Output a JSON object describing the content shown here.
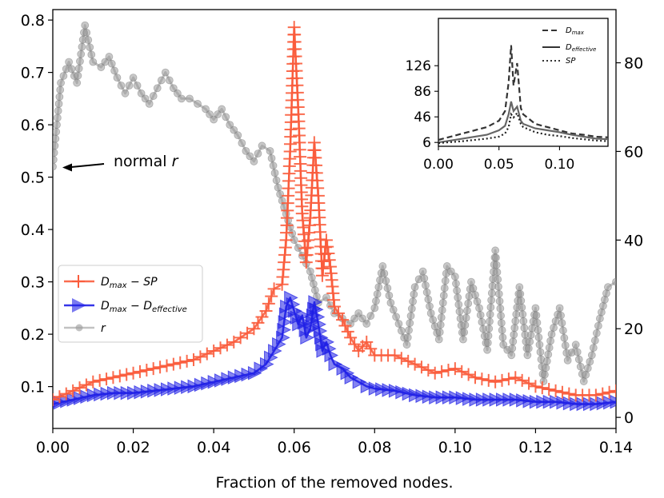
{
  "chart_data": {
    "type": "line",
    "xlabel": "Fraction of the removed nodes.",
    "xlim": [
      0,
      0.14
    ],
    "x_ticks": [
      "0.00",
      "0.02",
      "0.04",
      "0.06",
      "0.08",
      "0.10",
      "0.12",
      "0.14"
    ],
    "left_ylim": [
      0.02,
      0.82
    ],
    "left_y_ticks": [
      "0.1",
      "0.2",
      "0.3",
      "0.4",
      "0.5",
      "0.6",
      "0.7",
      "0.8"
    ],
    "right_ylim": [
      -2.5,
      92
    ],
    "right_y_ticks": [
      "0",
      "20",
      "40",
      "60",
      "80"
    ],
    "annotation": {
      "text": "normal",
      "italic_part": "r",
      "target_x": 0.0,
      "target_y": 0.52
    },
    "legend": [
      {
        "label": "D",
        "sub": "max",
        "rest": " − SP",
        "color": "#fa5c3c",
        "marker": "plus"
      },
      {
        "label": "D",
        "sub": "max",
        "rest": " − D",
        "sub2": "effective",
        "color": "#1f1fe6",
        "marker": "triangle"
      },
      {
        "label": "r",
        "color": "#9a9a9a",
        "marker": "circle"
      }
    ],
    "series": [
      {
        "name": "Dmax - SP",
        "axis": "right",
        "color": "#fa5c3c",
        "x": [
          0.0,
          0.005,
          0.01,
          0.015,
          0.02,
          0.025,
          0.03,
          0.035,
          0.04,
          0.045,
          0.05,
          0.053,
          0.055,
          0.057,
          0.058,
          0.059,
          0.06,
          0.061,
          0.062,
          0.063,
          0.064,
          0.065,
          0.066,
          0.067,
          0.068,
          0.069,
          0.07,
          0.072,
          0.074,
          0.076,
          0.078,
          0.08,
          0.085,
          0.09,
          0.095,
          0.1,
          0.105,
          0.11,
          0.115,
          0.12,
          0.125,
          0.13,
          0.135,
          0.14
        ],
        "values": [
          4,
          6,
          8,
          9,
          10,
          11,
          12,
          13,
          15,
          17,
          20,
          24,
          29,
          30,
          40,
          60,
          88,
          70,
          46,
          35,
          45,
          62,
          50,
          32,
          40,
          34,
          25,
          22,
          18,
          15,
          17,
          14,
          14,
          12,
          10,
          11,
          9,
          8,
          9,
          7,
          6,
          5,
          5,
          6
        ]
      },
      {
        "name": "Dmax - Deffective",
        "axis": "right",
        "color": "#1f1fe6",
        "x": [
          0.0,
          0.005,
          0.01,
          0.015,
          0.02,
          0.025,
          0.03,
          0.035,
          0.04,
          0.045,
          0.05,
          0.053,
          0.055,
          0.057,
          0.058,
          0.059,
          0.06,
          0.061,
          0.062,
          0.063,
          0.064,
          0.065,
          0.066,
          0.067,
          0.068,
          0.069,
          0.07,
          0.072,
          0.074,
          0.076,
          0.078,
          0.08,
          0.085,
          0.09,
          0.095,
          0.1,
          0.105,
          0.11,
          0.115,
          0.12,
          0.125,
          0.13,
          0.135,
          0.14
        ],
        "values": [
          3,
          4,
          5,
          5.5,
          5.5,
          6,
          6.5,
          7,
          8,
          9,
          10,
          12,
          15,
          18,
          25,
          27,
          24,
          21,
          23,
          18,
          20,
          26,
          21,
          15,
          17,
          14,
          12,
          11,
          9,
          8,
          7,
          6.5,
          6,
          5,
          4.5,
          4.5,
          4,
          4,
          4,
          3.5,
          3.5,
          3,
          3,
          3.5
        ]
      },
      {
        "name": "r",
        "axis": "left",
        "color": "#9a9a9a",
        "x": [
          0.0,
          0.002,
          0.004,
          0.006,
          0.008,
          0.01,
          0.012,
          0.014,
          0.016,
          0.018,
          0.02,
          0.022,
          0.024,
          0.026,
          0.028,
          0.03,
          0.032,
          0.034,
          0.036,
          0.038,
          0.04,
          0.042,
          0.044,
          0.046,
          0.048,
          0.05,
          0.052,
          0.054,
          0.056,
          0.058,
          0.06,
          0.062,
          0.064,
          0.066,
          0.068,
          0.07,
          0.072,
          0.074,
          0.076,
          0.078,
          0.08,
          0.082,
          0.084,
          0.086,
          0.088,
          0.09,
          0.092,
          0.094,
          0.096,
          0.098,
          0.1,
          0.102,
          0.104,
          0.106,
          0.108,
          0.11,
          0.112,
          0.114,
          0.116,
          0.118,
          0.12,
          0.122,
          0.124,
          0.126,
          0.128,
          0.13,
          0.132,
          0.134,
          0.136,
          0.138,
          0.14
        ],
        "values": [
          0.52,
          0.68,
          0.72,
          0.68,
          0.79,
          0.72,
          0.71,
          0.73,
          0.69,
          0.66,
          0.69,
          0.66,
          0.64,
          0.67,
          0.7,
          0.67,
          0.65,
          0.65,
          0.64,
          0.63,
          0.61,
          0.63,
          0.6,
          0.58,
          0.55,
          0.53,
          0.56,
          0.55,
          0.48,
          0.43,
          0.38,
          0.35,
          0.32,
          0.26,
          0.27,
          0.24,
          0.23,
          0.22,
          0.24,
          0.22,
          0.25,
          0.33,
          0.26,
          0.22,
          0.18,
          0.29,
          0.32,
          0.24,
          0.19,
          0.33,
          0.31,
          0.19,
          0.3,
          0.25,
          0.17,
          0.36,
          0.18,
          0.16,
          0.29,
          0.16,
          0.25,
          0.11,
          0.2,
          0.25,
          0.15,
          0.18,
          0.11,
          0.16,
          0.23,
          0.29,
          0.3
        ]
      }
    ],
    "inset": {
      "type": "line",
      "xlim": [
        0,
        0.14
      ],
      "ylim": [
        0,
        200
      ],
      "x_ticks": [
        "0.00",
        "0.05",
        "0.10"
      ],
      "y_ticks": [
        "6",
        "46",
        "86",
        "126"
      ],
      "legend": [
        {
          "label": "D",
          "sub": "max",
          "style": "dashed"
        },
        {
          "label": "D",
          "sub": "effective",
          "style": "solid"
        },
        {
          "label": "SP",
          "style": "dotted"
        }
      ],
      "series": [
        {
          "name": "Dmax",
          "style": "dashed",
          "color": "#333333",
          "x": [
            0.0,
            0.02,
            0.04,
            0.05,
            0.055,
            0.058,
            0.06,
            0.062,
            0.065,
            0.068,
            0.07,
            0.08,
            0.09,
            0.1,
            0.11,
            0.12,
            0.13,
            0.14
          ],
          "values": [
            10,
            20,
            30,
            40,
            55,
            100,
            158,
            95,
            130,
            60,
            50,
            35,
            30,
            25,
            20,
            18,
            15,
            14
          ]
        },
        {
          "name": "Deffective",
          "style": "solid",
          "color": "#666666",
          "x": [
            0.0,
            0.02,
            0.04,
            0.05,
            0.055,
            0.058,
            0.06,
            0.062,
            0.065,
            0.068,
            0.07,
            0.08,
            0.09,
            0.1,
            0.11,
            0.12,
            0.13,
            0.14
          ],
          "values": [
            6,
            12,
            18,
            25,
            32,
            50,
            70,
            55,
            62,
            40,
            35,
            28,
            25,
            22,
            18,
            15,
            12,
            11
          ]
        },
        {
          "name": "SP",
          "style": "dotted",
          "color": "#222222",
          "x": [
            0.0,
            0.02,
            0.04,
            0.05,
            0.055,
            0.058,
            0.06,
            0.062,
            0.065,
            0.068,
            0.07,
            0.08,
            0.09,
            0.1,
            0.11,
            0.12,
            0.13,
            0.14
          ],
          "values": [
            5,
            8,
            12,
            15,
            20,
            30,
            50,
            45,
            52,
            35,
            30,
            22,
            18,
            16,
            13,
            11,
            9,
            8
          ]
        }
      ]
    }
  }
}
